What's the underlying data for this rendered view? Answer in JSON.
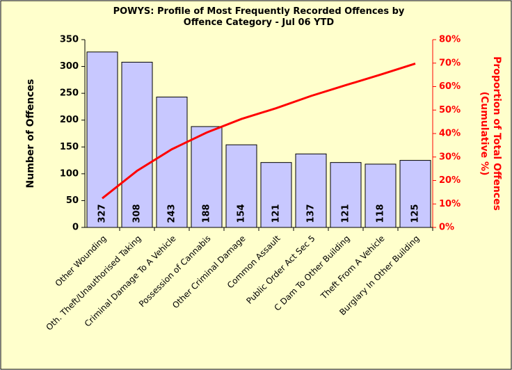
{
  "chart_data": {
    "type": "bar",
    "title": "POWYS: Profile of Most Frequently Recorded Offences by Offence Category - Jul 06 YTD",
    "ylabel": "Number of Offences",
    "y2label": "Proportion of Total Offences (Cumulative %)",
    "categories": [
      "Other Wounding",
      "Oth. Theft/Unauthorised Taking",
      "Criminal Damage To A Vehicle",
      "Possession of Cannabis",
      "Other Criminal Damage",
      "Common Assault",
      "Public Order Act Sec 5",
      "C Dam To Other Building",
      "Theft From A Vehicle",
      "Burglary In Other Building"
    ],
    "series": [
      {
        "name": "Number of Offences",
        "type": "bar",
        "color": "#c8c8ff",
        "values": [
          327,
          308,
          243,
          188,
          154,
          121,
          137,
          121,
          118,
          125
        ]
      },
      {
        "name": "Proportion of Total Offences (Cumulative %)",
        "type": "line",
        "axis": "y2",
        "color": "#ff0000",
        "values": [
          12.4,
          24.1,
          33.3,
          40.4,
          46.2,
          50.8,
          56.0,
          60.6,
          65.1,
          69.8
        ]
      }
    ],
    "ylim": [
      0,
      350
    ],
    "yticks": [
      0,
      50,
      100,
      150,
      200,
      250,
      300,
      350
    ],
    "y2lim": [
      0,
      80
    ],
    "y2ticks": [
      {
        "value": 0,
        "label": "0%"
      },
      {
        "value": 10,
        "label": "10%"
      },
      {
        "value": 20,
        "label": "20%"
      },
      {
        "value": 30,
        "label": "30%"
      },
      {
        "value": 40,
        "label": "40%"
      },
      {
        "value": 50,
        "label": "50%"
      },
      {
        "value": 60,
        "label": "60%"
      },
      {
        "value": 70,
        "label": "70%"
      },
      {
        "value": 80,
        "label": "80%"
      }
    ],
    "grid": false
  }
}
